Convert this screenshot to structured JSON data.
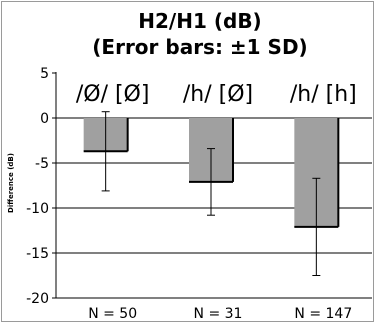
{
  "chart_data": {
    "type": "bar",
    "title": "H2/H1 (dB)",
    "subtitle": "(Error bars: ±1 SD)",
    "ylabel": "Difference (dB)",
    "xlabel": "",
    "ylim": [
      -20,
      5
    ],
    "yticks": [
      5,
      0,
      -5,
      -10,
      -15,
      -20
    ],
    "ytick_labels": [
      "5",
      "0",
      "-5",
      "-10",
      "-15",
      "-20"
    ],
    "grid": true,
    "categories": [
      "/Ø/ [Ø]",
      "/h/ [Ø]",
      "/h/ [h]"
    ],
    "values": [
      -3.7,
      -7.1,
      -12.1
    ],
    "error_sd": [
      4.4,
      3.7,
      5.4
    ],
    "n_labels": [
      "N = 50",
      "N = 31",
      "N = 147"
    ],
    "colors": {
      "bar": "#a0a0a0",
      "bar_edge": "#000000",
      "grid": "#000000",
      "error_bar": "#000000"
    }
  }
}
